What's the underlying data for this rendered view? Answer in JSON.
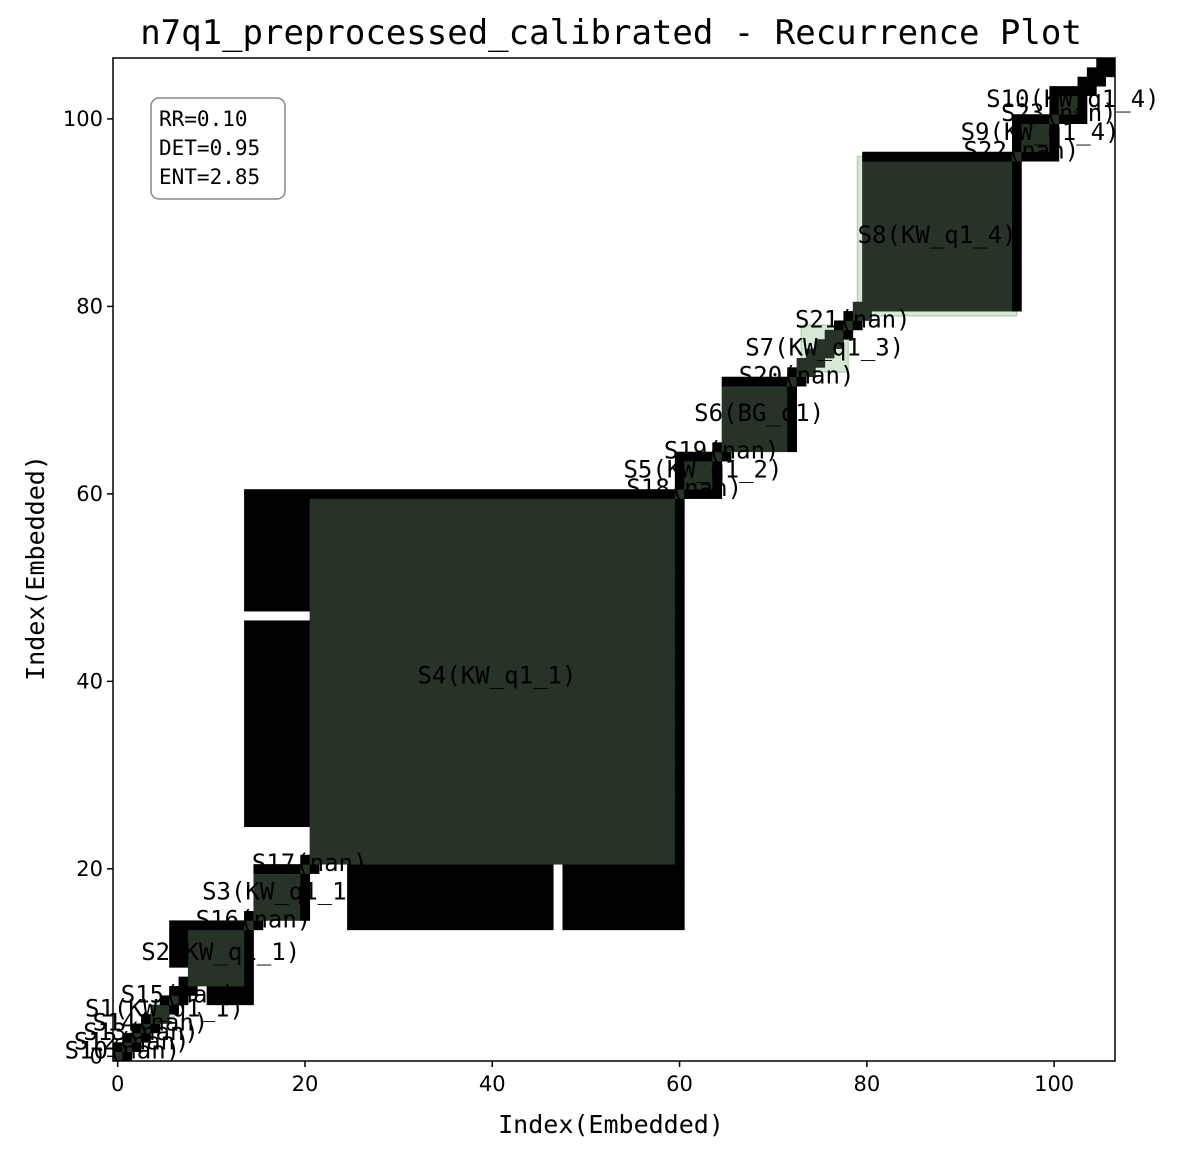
{
  "chart_data": {
    "type": "heatmap",
    "title": "n7q1_preprocessed_calibrated - Recurrence Plot",
    "xlabel": "Index(Embedded)",
    "ylabel": "Index(Embedded)",
    "xlim": [
      -0.5,
      106.5
    ],
    "ylim": [
      -0.5,
      106.5
    ],
    "xticks": [
      0,
      20,
      40,
      60,
      80,
      100
    ],
    "yticks": [
      0,
      20,
      40,
      60,
      80,
      100
    ],
    "grid": false,
    "colors": {
      "recurrence": "#000000",
      "segment_fill": "#d7e8d7",
      "segment_edge": "#b5d4b5",
      "recurrence_in_segment": "#263326"
    },
    "stats": [
      "RR=0.10",
      "DET=0.95",
      "ENT=2.85"
    ],
    "recurrence_blocks": [
      [
        21,
        60,
        21,
        60
      ],
      [
        25,
        46,
        15,
        20
      ],
      [
        53,
        59,
        15,
        20
      ],
      [
        14,
        20,
        48,
        60
      ],
      [
        14,
        20,
        25,
        46
      ],
      [
        10,
        14,
        6,
        14
      ],
      [
        15,
        20,
        15,
        20
      ],
      [
        66,
        72,
        65,
        72
      ],
      [
        61,
        64,
        60,
        64
      ],
      [
        80,
        96,
        80,
        96
      ],
      [
        97,
        100,
        96,
        100
      ],
      [
        101,
        103,
        100,
        103
      ]
    ],
    "segments": [
      {
        "label": "S10(nan)",
        "start": 0,
        "end": 1
      },
      {
        "label": "S12(nan)",
        "start": 1,
        "end": 2
      },
      {
        "label": "S13(nan)",
        "start": 2,
        "end": 3
      },
      {
        "label": "S14(nan)",
        "start": 3,
        "end": 4
      },
      {
        "label": "S1(KW_q1_1)",
        "start": 4,
        "end": 6
      },
      {
        "label": "S15(nan)",
        "start": 6,
        "end": 7
      },
      {
        "label": "S2(KW_q1_1)",
        "start": 8,
        "end": 14
      },
      {
        "label": "S16(nan)",
        "start": 14,
        "end": 15
      },
      {
        "label": "S3(KW_q1_1)",
        "start": 15,
        "end": 20
      },
      {
        "label": "S17(nan)",
        "start": 20,
        "end": 21
      },
      {
        "label": "S4(KW_q1_1)",
        "start": 21,
        "end": 60
      },
      {
        "label": "S18(nan)",
        "start": 60,
        "end": 61
      },
      {
        "label": "S5(KW_q1_2)",
        "start": 61,
        "end": 64
      },
      {
        "label": "S19(nan)",
        "start": 64,
        "end": 65
      },
      {
        "label": "S6(BG_q1)",
        "start": 65,
        "end": 72
      },
      {
        "label": "S20(nan)",
        "start": 72,
        "end": 73
      },
      {
        "label": "S7(KW_q1_3)",
        "start": 73,
        "end": 78
      },
      {
        "label": "S21(nan)",
        "start": 78,
        "end": 79
      },
      {
        "label": "S8(KW_q1_4)",
        "start": 79,
        "end": 96
      },
      {
        "label": "S22(nan)",
        "start": 96,
        "end": 97
      },
      {
        "label": "S9(KW_q1_4)",
        "start": 97,
        "end": 100
      },
      {
        "label": "S23(nan)",
        "start": 100,
        "end": 101
      },
      {
        "label": "S10(KW_q1_4)",
        "start": 101,
        "end": 103
      }
    ]
  }
}
